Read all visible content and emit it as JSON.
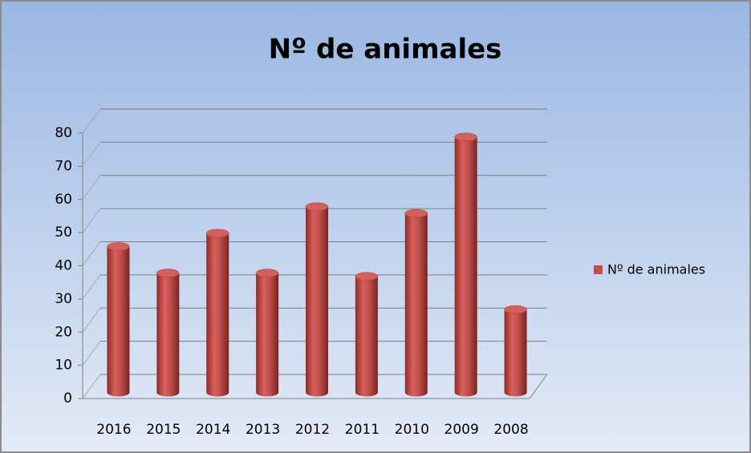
{
  "chart_data": {
    "type": "bar",
    "title": "Nº de animales",
    "categories": [
      "2016",
      "2015",
      "2014",
      "2013",
      "2012",
      "2011",
      "2010",
      "2009",
      "2008"
    ],
    "series": [
      {
        "name": "Nº de animales",
        "color": "#c0504d",
        "values": [
          44,
          36,
          48,
          36,
          56,
          35,
          54,
          77,
          25
        ]
      }
    ],
    "ylim": [
      0,
      80
    ],
    "yticks": [
      0,
      10,
      20,
      30,
      40,
      50,
      60,
      70,
      80
    ],
    "grid": true,
    "legend": "right"
  }
}
